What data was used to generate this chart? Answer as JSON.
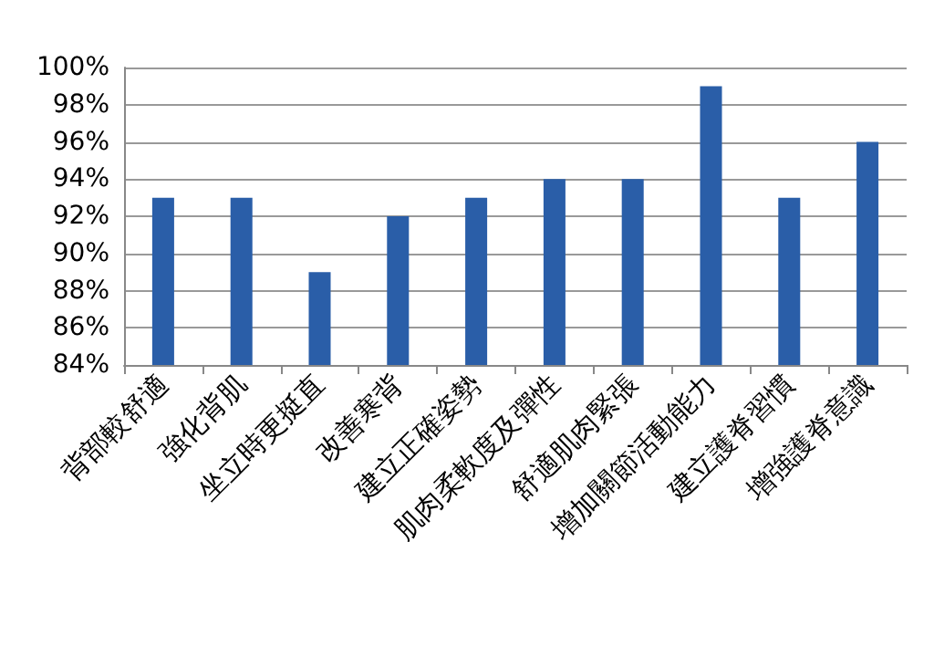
{
  "chart_data": {
    "type": "bar",
    "categories": [
      "背部較舒適",
      "強化背肌",
      "坐立時更挺直",
      "改善寒背",
      "建立正確姿勢",
      "肌肉柔軟度及彈性",
      "舒適肌肉緊張",
      "增加關節活動能力",
      "建立護脊習慣",
      "增強護脊意識"
    ],
    "values": [
      93,
      93,
      89,
      92,
      93,
      94,
      94,
      99,
      93,
      96
    ],
    "color": "#2a5ea8",
    "ylim": [
      84,
      100
    ],
    "yticks": [
      {
        "value": 84,
        "label": "84%"
      },
      {
        "value": 86,
        "label": "86%"
      },
      {
        "value": 88,
        "label": "88%"
      },
      {
        "value": 90,
        "label": "90%"
      },
      {
        "value": 92,
        "label": "92%"
      },
      {
        "value": 94,
        "label": "94%"
      },
      {
        "value": 96,
        "label": "96%"
      },
      {
        "value": 98,
        "label": "98%"
      },
      {
        "value": 100,
        "label": "100%"
      }
    ],
    "grid": "y"
  }
}
